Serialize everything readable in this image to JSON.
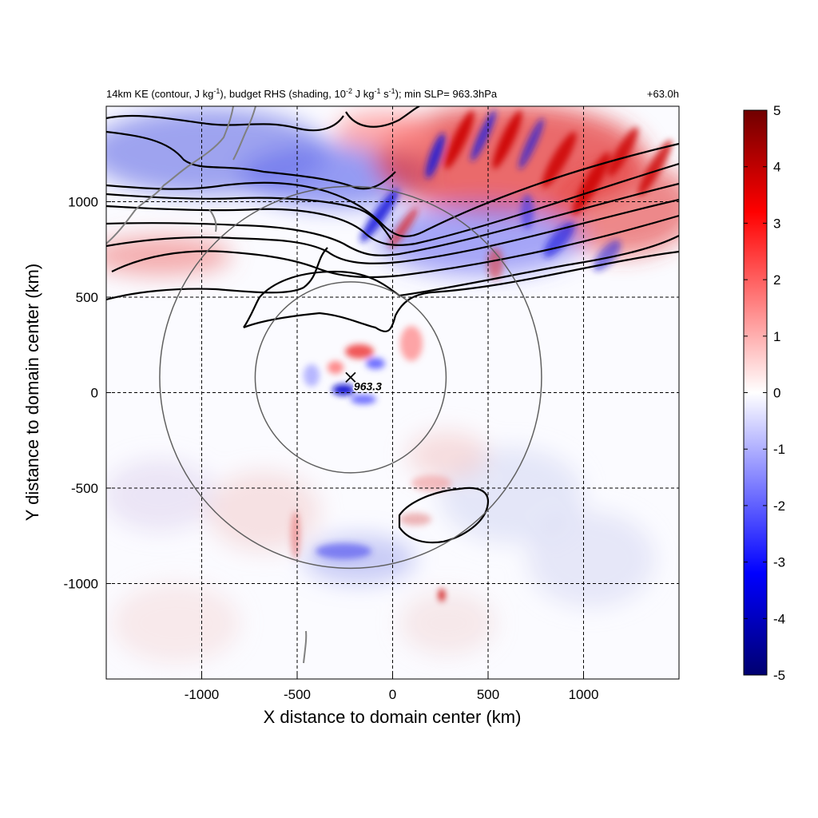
{
  "chart_data": {
    "type": "heatmap",
    "title_parts": {
      "prefix": "14km KE (contour, J kg",
      "sup1": "-1",
      "mid1": "), budget RHS (shading, 10",
      "sup2": "-2",
      "mid2": " J kg",
      "sup3": "-1",
      "mid3": " s",
      "sup4": "-1",
      "suffix": "); min SLP= 963.3hPa"
    },
    "time_label": "+63.0h",
    "xlabel": "X distance to domain center (km)",
    "ylabel": "Y distance to domain center (km)",
    "xlim": [
      -1500,
      1500
    ],
    "ylim": [
      -1500,
      1500
    ],
    "x_ticks": [
      -1000,
      -500,
      0,
      500,
      1000
    ],
    "y_ticks": [
      -1000,
      -500,
      0,
      500,
      1000
    ],
    "grid": true,
    "colorbar": {
      "min": -5,
      "max": 5,
      "ticks": [
        5,
        4,
        3,
        2,
        1,
        0,
        -1,
        -2,
        -3,
        -4,
        -5
      ],
      "colormap": [
        "#000070",
        "#0000ff",
        "#ffffff",
        "#ff0000",
        "#700000"
      ]
    },
    "min_slp": {
      "value": "963.3",
      "x": -220,
      "y": 80
    },
    "circles": [
      {
        "cx": -220,
        "cy": 80,
        "r": 500
      },
      {
        "cx": -220,
        "cy": 80,
        "r": 1000
      }
    ]
  }
}
